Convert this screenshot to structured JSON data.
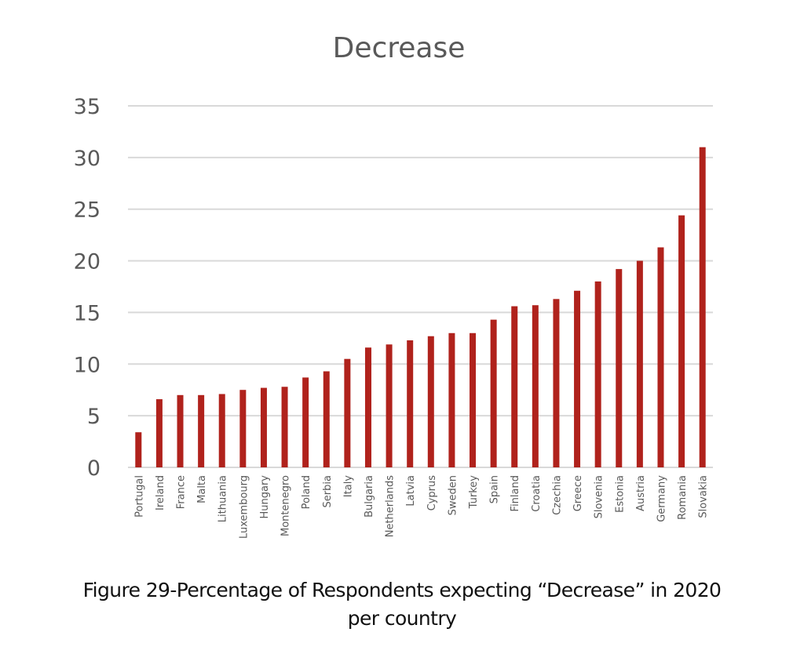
{
  "chart_data": {
    "type": "bar",
    "title": "Decrease",
    "xlabel": "",
    "ylabel": "",
    "ylim": [
      0,
      35
    ],
    "yticks": [
      0,
      5,
      10,
      15,
      20,
      25,
      30,
      35
    ],
    "grid": true,
    "legend": "none",
    "bar_color": "#b0221c",
    "categories": [
      "Portugal",
      "Ireland",
      "France",
      "Malta",
      "Lithuania",
      "Luxembourg",
      "Hungary",
      "Montenegro",
      "Poland",
      "Serbia",
      "Italy",
      "Bulgaria",
      "Netherlands",
      "Latvia",
      "Cyprus",
      "Sweden",
      "Turkey",
      "Spain",
      "Finland",
      "Croatia",
      "Czechia",
      "Greece",
      "Slovenia",
      "Estonia",
      "Austria",
      "Germany",
      "Romania",
      "Slovakia"
    ],
    "values": [
      3.4,
      6.6,
      7.0,
      7.0,
      7.1,
      7.5,
      7.7,
      7.8,
      8.7,
      9.3,
      10.5,
      11.6,
      11.9,
      12.3,
      12.7,
      13.0,
      13.0,
      14.3,
      15.6,
      15.7,
      16.3,
      17.1,
      18.0,
      19.2,
      20.0,
      21.3,
      24.4,
      31.0
    ]
  },
  "caption": {
    "line1": "Figure 29-Percentage of Respondents expecting “Decrease” in 2020",
    "line2": "per country"
  }
}
